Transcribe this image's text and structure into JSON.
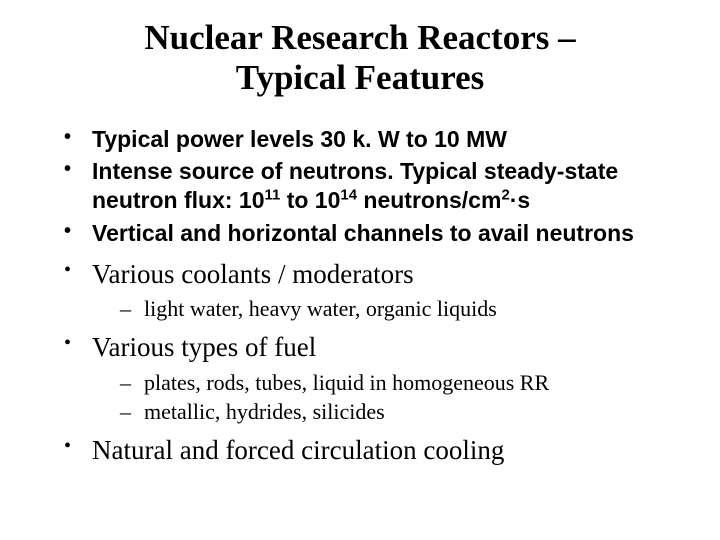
{
  "title_line1": "Nuclear Research Reactors –",
  "title_line2": "Typical Features",
  "bullets": {
    "b1": "Typical power levels 30 k. W to 10 MW",
    "b2_pre": "Intense source of neutrons. Typical steady-state neutron flux: 10",
    "b2_exp1": "11",
    "b2_mid": " to 10",
    "b2_exp2": "14",
    "b2_post1": " neutrons/cm",
    "b2_exp3": "2",
    "b2_dot": "·",
    "b2_post2": "s",
    "b3": "Vertical and horizontal channels to avail neutrons",
    "b4": "Various coolants / moderators",
    "b4_sub1": "light water, heavy water, organic liquids",
    "b5": "Various types of fuel",
    "b5_sub1": "plates, rods, tubes, liquid in homogeneous RR",
    "b5_sub2": "metallic, hydrides, silicides",
    "b6": "Natural and forced circulation cooling"
  },
  "colors": {
    "background": "#ffffff",
    "text": "#000000"
  },
  "fonts": {
    "title_pt": 35,
    "bold_pt": 23,
    "serif_pt": 27,
    "sub_pt": 22
  }
}
